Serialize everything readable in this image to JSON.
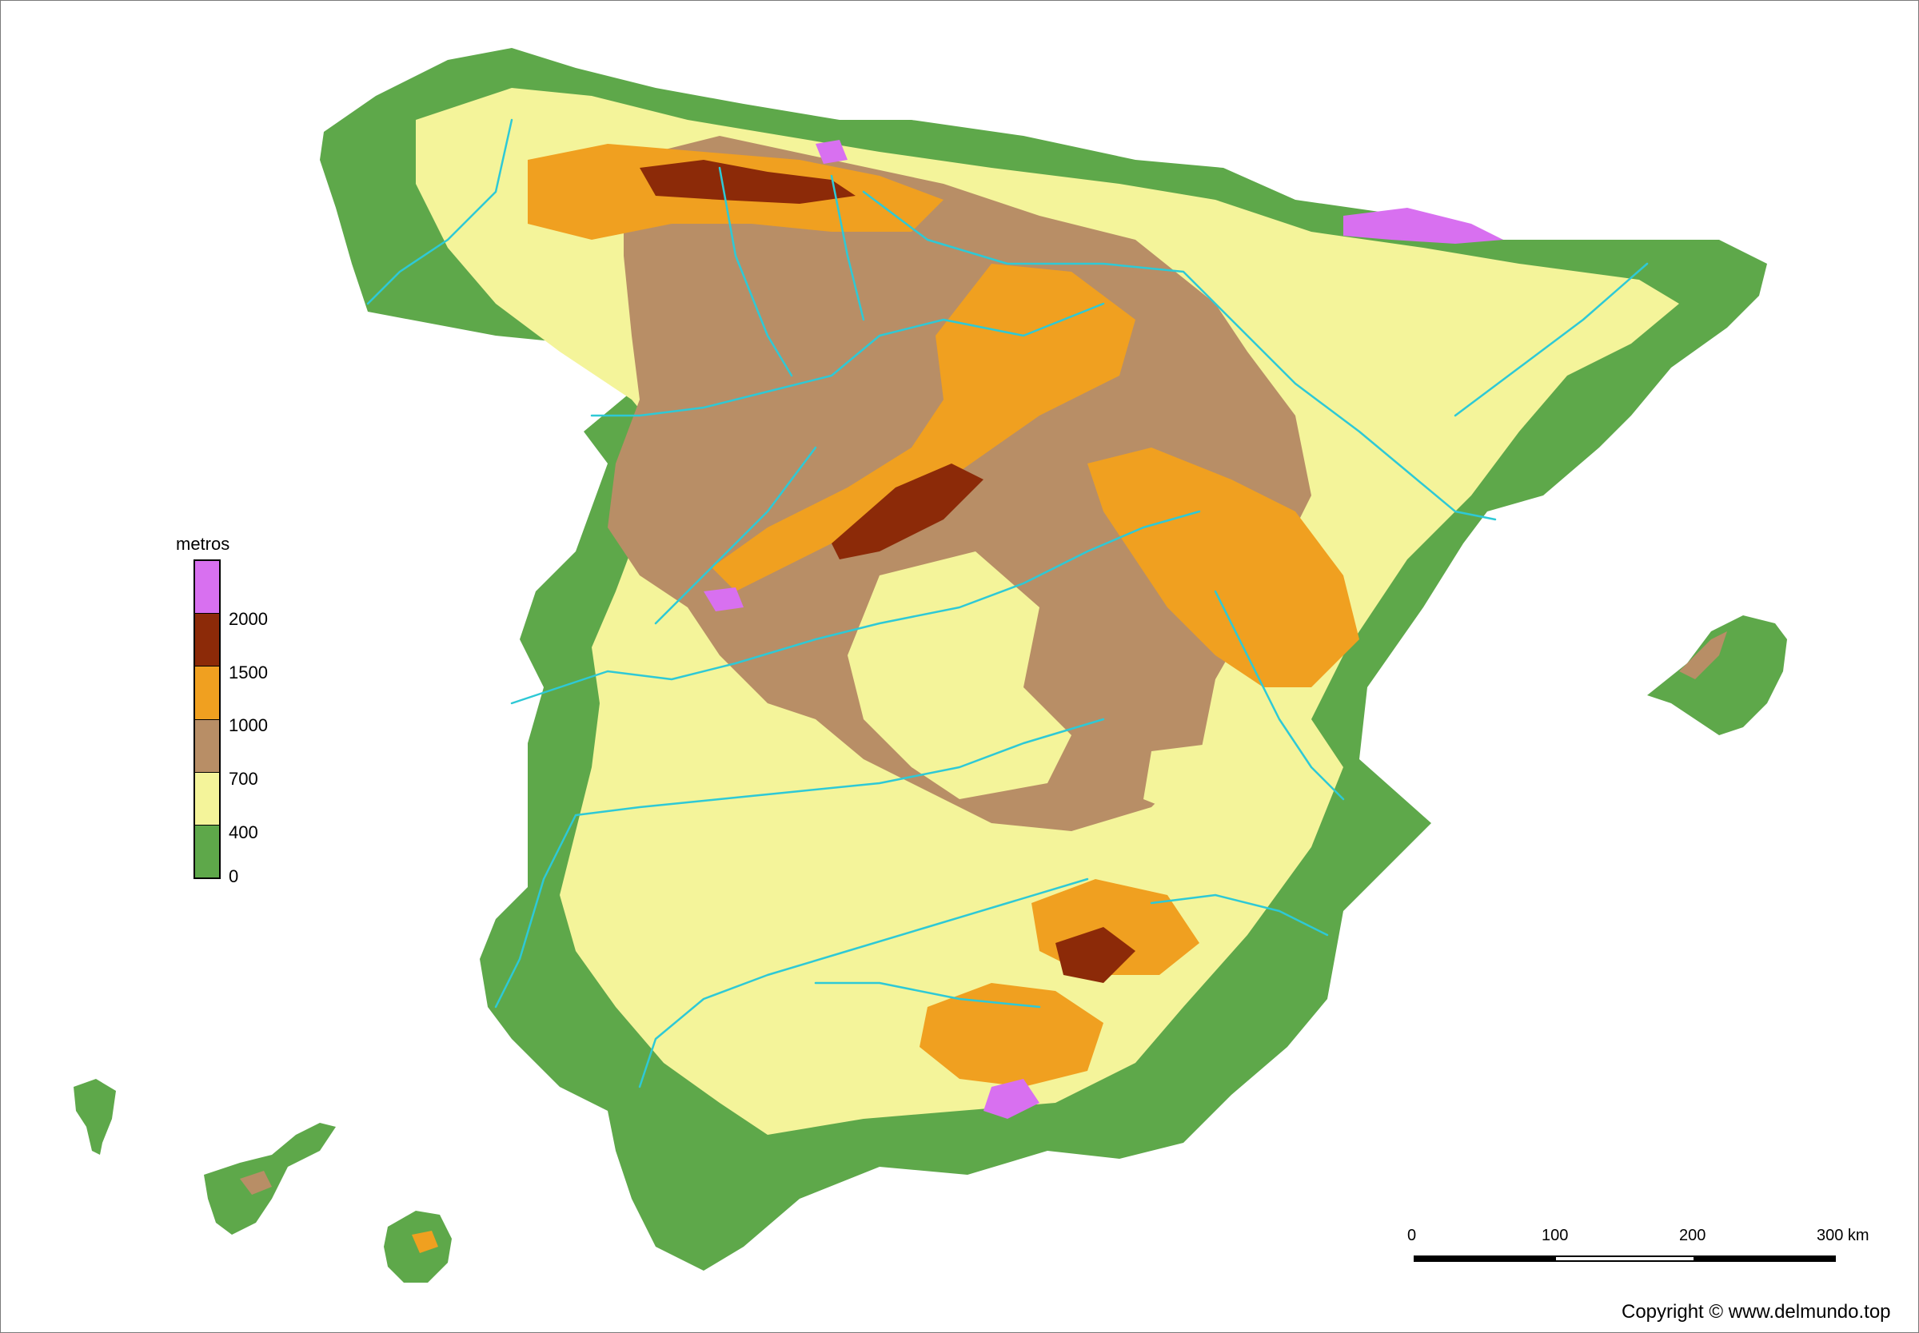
{
  "colors": {
    "water": "#2ec9d6",
    "band_0_400": "#5ea84a",
    "band_400_700": "#f4f49a",
    "band_700_1000": "#b88e66",
    "band_1000_1500": "#f0a020",
    "band_1500_2000": "#8c2a08",
    "band_2000_plus": "#d870f0"
  },
  "legend": {
    "title": "metros",
    "labels": [
      "2000",
      "1500",
      "1000",
      "700",
      "400",
      "0"
    ],
    "swatches": [
      {
        "name": "2000+",
        "color": "#d870f0"
      },
      {
        "name": "1500-2000",
        "color": "#8c2a08"
      },
      {
        "name": "1000-1500",
        "color": "#f0a020"
      },
      {
        "name": "700-1000",
        "color": "#b88e66"
      },
      {
        "name": "400-700",
        "color": "#f4f49a"
      },
      {
        "name": "0-400",
        "color": "#5ea84a"
      }
    ]
  },
  "scale": {
    "labels": [
      "0",
      "100",
      "200",
      "300 km"
    ]
  },
  "copyright": "Copyright © www.delmundo.top"
}
